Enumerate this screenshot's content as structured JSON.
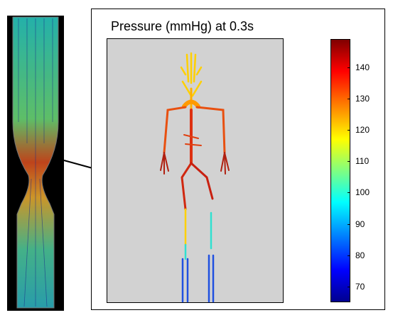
{
  "title": "Pressure (mmHg) at 0.3s",
  "colorbar": {
    "min": 65,
    "max": 149,
    "ticks": [
      "70",
      "80",
      "90",
      "100",
      "110",
      "120",
      "130",
      "140"
    ],
    "tick_values": [
      70,
      80,
      90,
      100,
      110,
      120,
      130,
      140
    ],
    "colormap": "jet"
  },
  "colors": {
    "high": "#c81e00",
    "mid_high": "#ff9600",
    "mid": "#ffe600",
    "low": "#30e0d0",
    "lowest": "#1a3ccf"
  }
}
